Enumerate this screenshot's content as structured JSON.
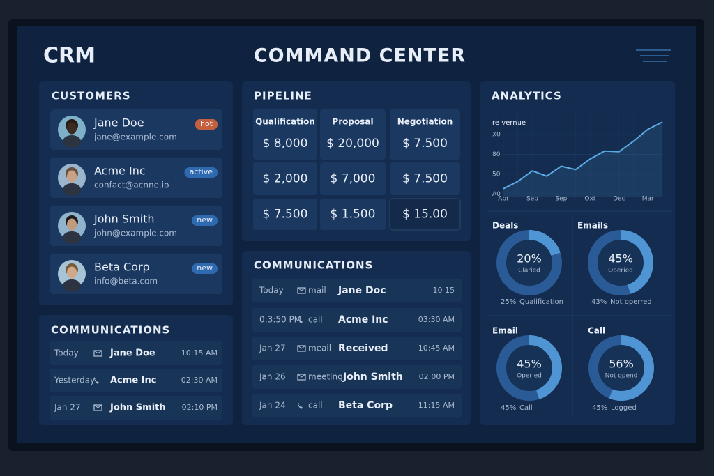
{
  "header": {
    "brand": "CRM",
    "title": "COMMAND CENTER"
  },
  "customers": {
    "title": "CUSTOMERS",
    "items": [
      {
        "name": "Jane Doe",
        "email": "jane@example.com",
        "tag": "hot"
      },
      {
        "name": "Acme Inc",
        "email": "confact@acnne.io",
        "tag": "active"
      },
      {
        "name": "John Smith",
        "email": "john@example.com",
        "tag": "new"
      },
      {
        "name": "Beta Corp",
        "email": "info@beta.com",
        "tag": "new"
      }
    ]
  },
  "communications_left": {
    "title": "COMMUNICATIONS",
    "rows": [
      {
        "when": "Today",
        "name": "Jane Doe",
        "time": "10:15 AM"
      },
      {
        "when": "Yesterday",
        "name": "Acme Inc",
        "time": "02:30 AM"
      },
      {
        "when": "Jan 27",
        "name": "John Smith",
        "time": "02:10 PM"
      }
    ]
  },
  "pipeline": {
    "title": "PIPELINE",
    "columns": [
      "Qualification",
      "Proposal",
      "Negotiation"
    ],
    "rows": [
      [
        "$ 8,000",
        "$ 20,000",
        "$ 7.500"
      ],
      [
        "$ 2,000",
        "$ 7,000",
        "$ 7.500"
      ],
      [
        "$ 7.500",
        "$ 1.500",
        "$ 15.00"
      ]
    ]
  },
  "communications": {
    "title": "COMMUNICATIONS",
    "rows": [
      {
        "when": "Today",
        "type": "mail",
        "name": "Jane Doc",
        "time": "10 15"
      },
      {
        "when": "0:3:50 PM",
        "type": "call",
        "name": "Acme Inc",
        "time": "03:30 AM"
      },
      {
        "when": "Jan 27",
        "type": "meail",
        "name": "Received",
        "time": "10:45 AM"
      },
      {
        "when": "Jan 26",
        "type": "meeting",
        "name": "John Smith",
        "time": "02:00 PM"
      },
      {
        "when": "Jan 24",
        "type": "call",
        "name": "Beta Corp",
        "time": "11:15 AM"
      }
    ]
  },
  "analytics": {
    "title": "ANALYTICS",
    "donuts": [
      {
        "title": "Deals",
        "value": 20,
        "value_label": "20%",
        "sublabel": "Claried",
        "foot_value": "25%",
        "foot_label": "Qualification"
      },
      {
        "title": "Emails",
        "value": 45,
        "value_label": "45%",
        "sublabel": "Operied",
        "foot_value": "43%",
        "foot_label": "Not operred"
      },
      {
        "title": "Email",
        "value": 45,
        "value_label": "45%",
        "sublabel": "Operied",
        "foot_value": "45%",
        "foot_label": "Call"
      },
      {
        "title": "Call",
        "value": 56,
        "value_label": "56%",
        "sublabel": "Not opend",
        "foot_value": "45%",
        "foot_label": "Logged"
      }
    ]
  },
  "chart_data": {
    "type": "line",
    "title": "re vernue",
    "categories": [
      "Apr",
      null,
      "Sep",
      null,
      "Sep",
      null,
      "Oxt",
      null,
      "Dec",
      null,
      "Mar",
      null
    ],
    "values": [
      28,
      39,
      55,
      47,
      62,
      57,
      73,
      85,
      84,
      100,
      118,
      129
    ],
    "color": "#5aaae6",
    "ylim": [
      15,
      145
    ],
    "yticks": [
      {
        "value": 20,
        "label": "A0"
      },
      50,
      80,
      {
        "value": 110,
        "label": "X0"
      }
    ],
    "grid": true
  }
}
